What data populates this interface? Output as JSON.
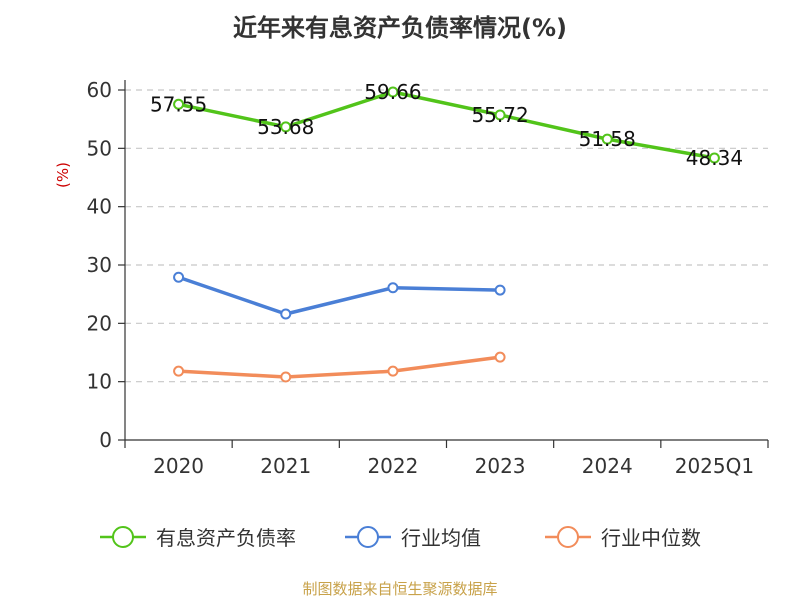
{
  "title": "近年来有息资产负债率情况(%)",
  "footer": "制图数据来自恒生聚源数据库",
  "chart_data": {
    "type": "line",
    "categories": [
      "2020",
      "2021",
      "2022",
      "2023",
      "2024",
      "2025Q1"
    ],
    "ylabel": "(%)",
    "ylim": [
      0,
      60
    ],
    "yticks": [
      0,
      10,
      20,
      30,
      40,
      50,
      60
    ],
    "grid": true,
    "legend_position": "bottom",
    "series": [
      {
        "name": "有息资产负债率",
        "color": "#52c41a",
        "values": [
          57.55,
          53.68,
          59.66,
          55.72,
          51.58,
          48.34
        ],
        "labels": [
          "57.55",
          "53.68",
          "59.66",
          "55.72",
          "51.58",
          "48.34"
        ]
      },
      {
        "name": "行业均值",
        "color": "#4a7fd6",
        "values": [
          27.9,
          21.6,
          26.1,
          25.7,
          null,
          null
        ]
      },
      {
        "name": "行业中位数",
        "color": "#f28c5a",
        "values": [
          11.8,
          10.8,
          11.8,
          14.2,
          null,
          null
        ]
      }
    ]
  }
}
